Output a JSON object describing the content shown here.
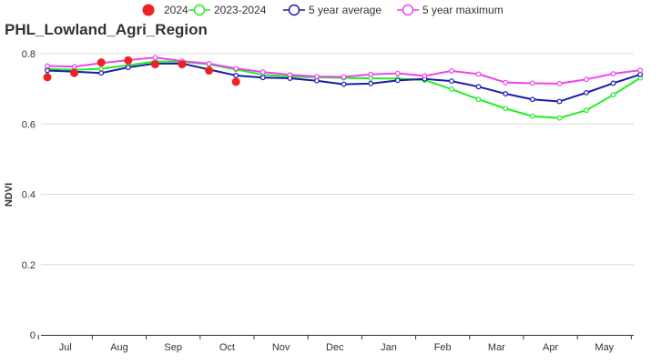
{
  "chart_data": {
    "type": "line",
    "title": "PHL_Lowland_Agri_Region",
    "ylabel": "NDVI",
    "xlabel": "",
    "ylim": [
      0,
      0.8
    ],
    "yticks": [
      "0",
      "0.2",
      "0.4",
      "0.6",
      "0.8"
    ],
    "ytick_values": [
      0,
      0.2,
      0.4,
      0.6,
      0.8
    ],
    "month_labels": [
      "Jul",
      "Aug",
      "Sep",
      "Oct",
      "Nov",
      "Dec",
      "Jan",
      "Feb",
      "Mar",
      "Apr",
      "May"
    ],
    "grid": true,
    "legend_position": "top",
    "x_steps": 24,
    "series": [
      {
        "name": "2024",
        "color": "#ee2222",
        "marker": "filled-circle",
        "line": false,
        "values": [
          0.733,
          0.745,
          0.775,
          0.781,
          0.77,
          0.77,
          0.752,
          0.72
        ]
      },
      {
        "name": "2023-2024",
        "color": "#22ee22",
        "marker": "open-circle",
        "line": true,
        "values": [
          0.757,
          0.754,
          0.757,
          0.767,
          0.778,
          0.777,
          0.77,
          0.755,
          0.74,
          0.735,
          0.733,
          0.731,
          0.73,
          0.729,
          0.725,
          0.699,
          0.67,
          0.644,
          0.622,
          0.617,
          0.639,
          0.683,
          0.731
        ]
      },
      {
        "name": "5 year average",
        "color": "#1a1aaa",
        "marker": "open-circle",
        "line": true,
        "values": [
          0.752,
          0.749,
          0.745,
          0.761,
          0.772,
          0.772,
          0.755,
          0.738,
          0.732,
          0.73,
          0.723,
          0.713,
          0.715,
          0.724,
          0.728,
          0.722,
          0.706,
          0.686,
          0.67,
          0.664,
          0.689,
          0.716,
          0.741
        ]
      },
      {
        "name": "5 year maximum",
        "color": "#ee44ee",
        "marker": "open-circle",
        "line": true,
        "values": [
          0.765,
          0.763,
          0.773,
          0.782,
          0.789,
          0.779,
          0.772,
          0.758,
          0.748,
          0.74,
          0.735,
          0.734,
          0.741,
          0.744,
          0.737,
          0.751,
          0.742,
          0.718,
          0.716,
          0.715,
          0.727,
          0.743,
          0.753
        ]
      }
    ]
  }
}
